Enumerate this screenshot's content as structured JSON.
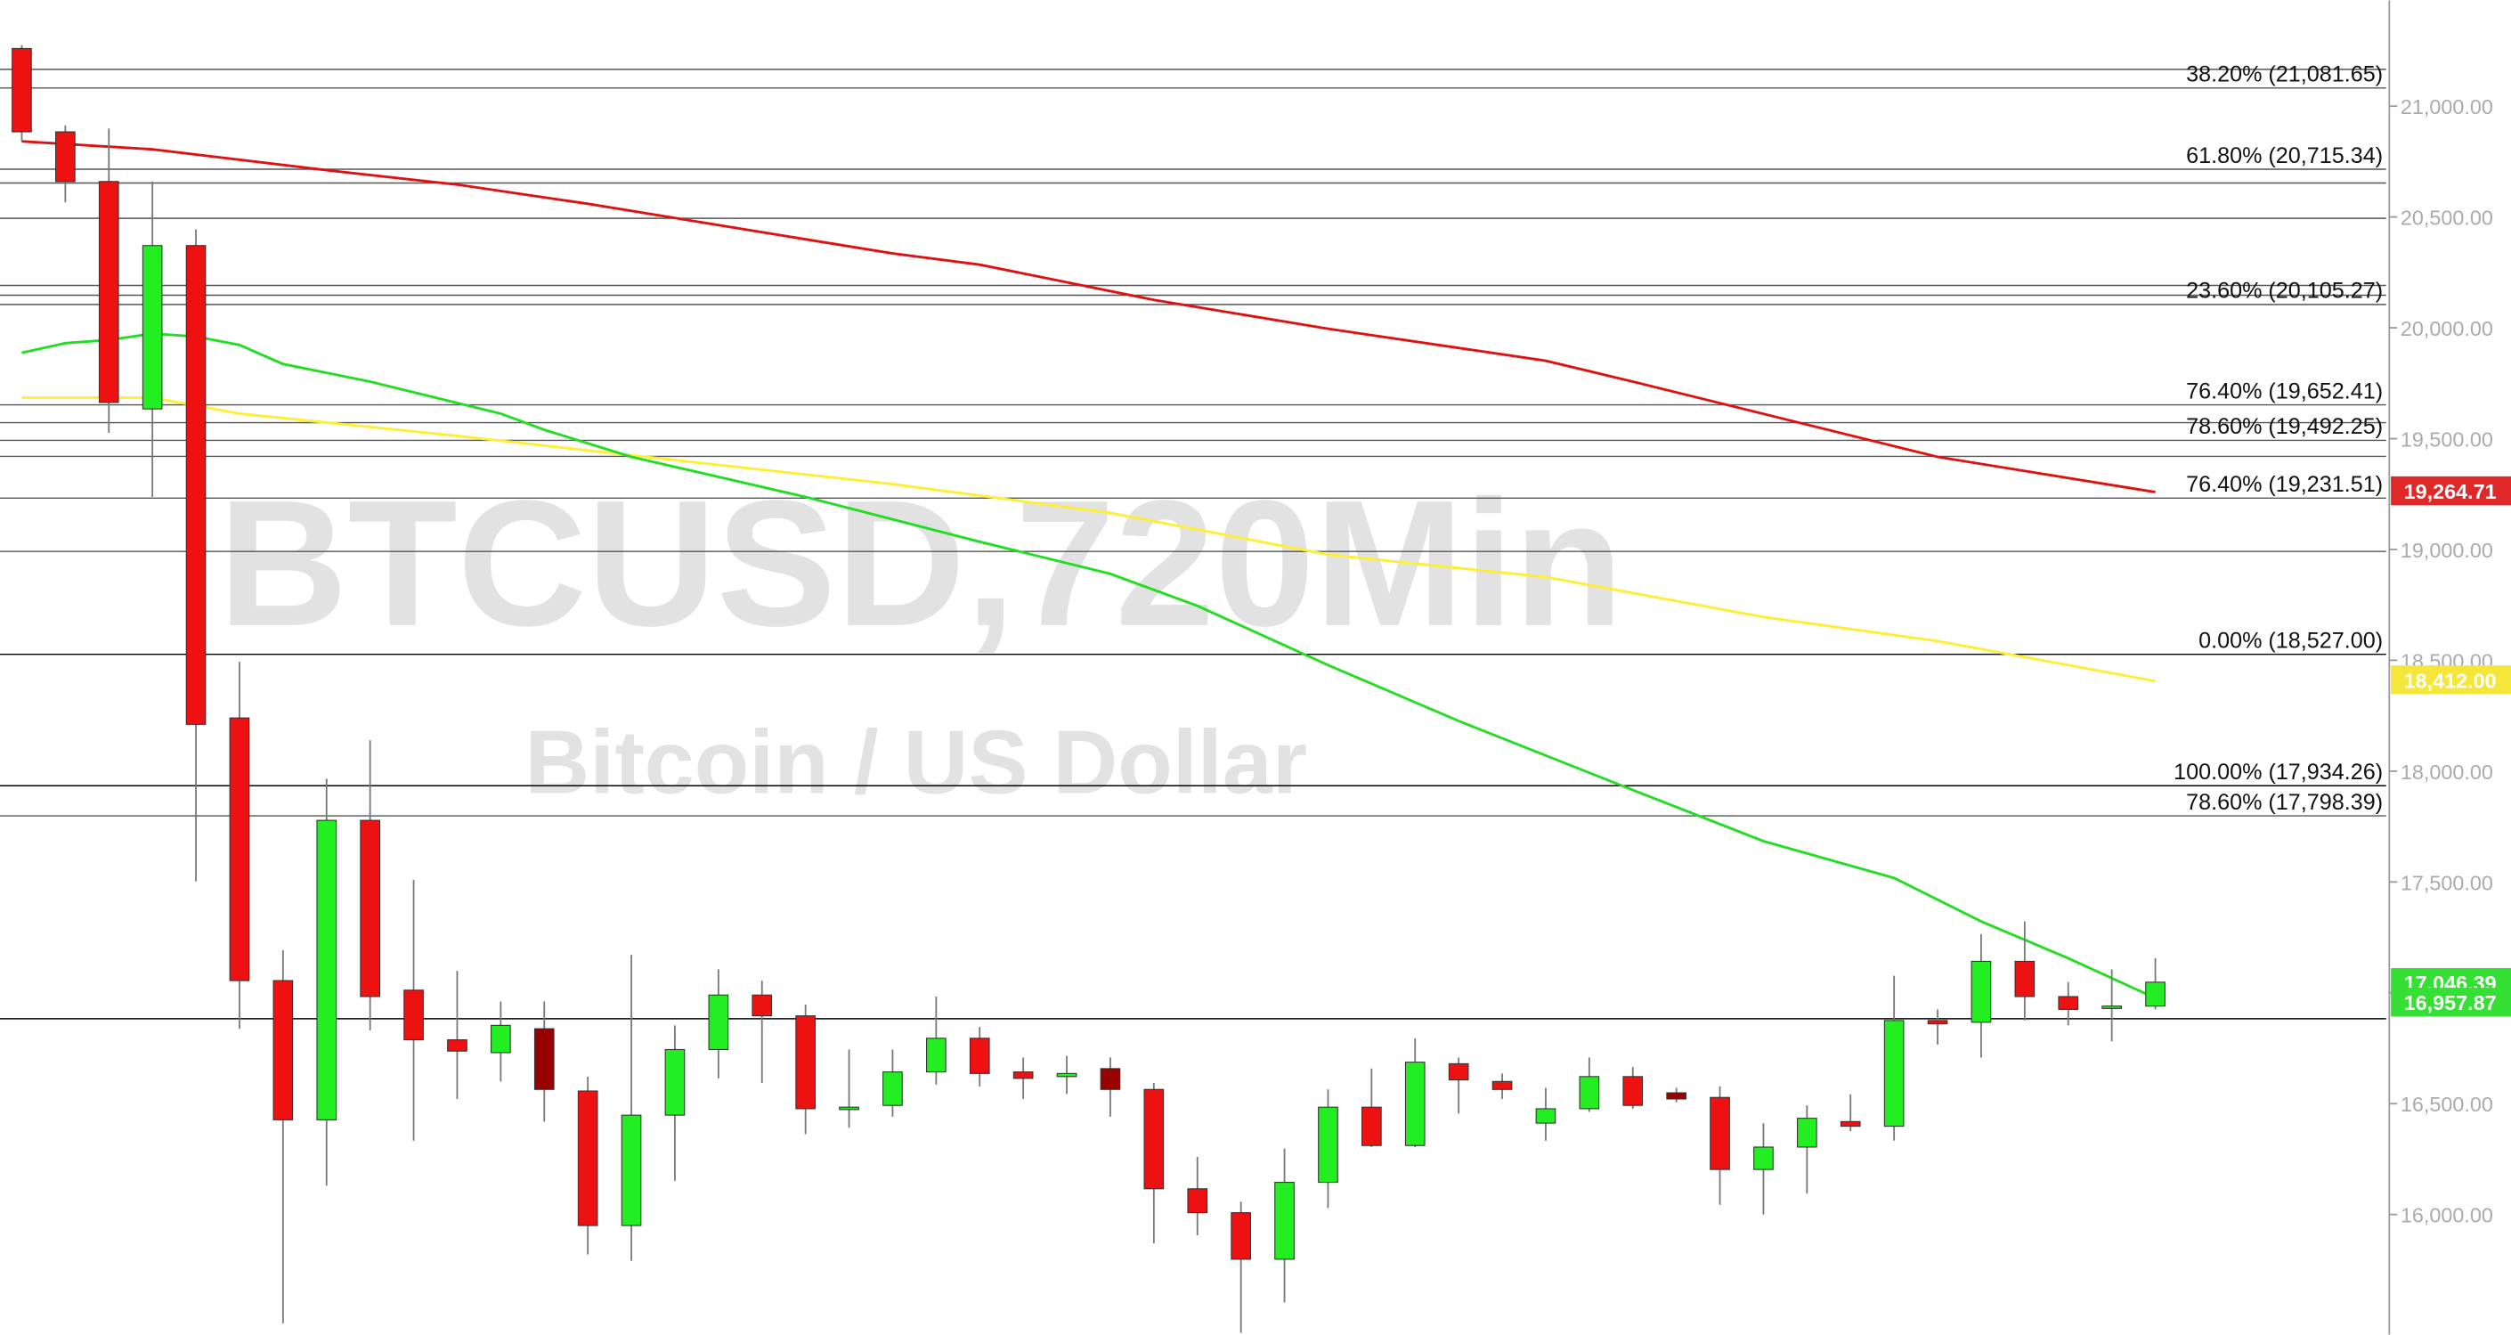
{
  "chart_data": {
    "type": "candlestick",
    "title": "BTCUSD,720Min",
    "subtitle": "Bitcoin / US Dollar",
    "xlim": [
      -0.5,
      54.3
    ],
    "ylim": [
      15458,
      21477
    ],
    "yticks": [
      {
        "value": 16000,
        "label": "16,000.00"
      },
      {
        "value": 16500,
        "label": "16,500.00"
      },
      {
        "value": 17000,
        "label": "17,000.00"
      },
      {
        "value": 17500,
        "label": "17,500.00"
      },
      {
        "value": 18000,
        "label": "18,000.00"
      },
      {
        "value": 18500,
        "label": "18,500.00"
      },
      {
        "value": 19000,
        "label": "19,000.00"
      },
      {
        "value": 19500,
        "label": "19,500.00"
      },
      {
        "value": 20000,
        "label": "20,000.00"
      },
      {
        "value": 20500,
        "label": "20,500.00"
      },
      {
        "value": 21000,
        "label": "21,000.00"
      }
    ],
    "up_color": "#22ee22",
    "down_color": "#ee1111",
    "alt_down_color": "#990000",
    "alt_down_indices": [
      12,
      25,
      38
    ],
    "x": [
      0,
      1,
      2,
      3,
      4,
      5,
      6,
      7,
      8,
      9,
      10,
      11,
      12,
      13,
      14,
      15,
      16,
      17,
      18,
      19,
      20,
      21,
      22,
      23,
      24,
      25,
      26,
      27,
      28,
      29,
      30,
      31,
      32,
      33,
      34,
      35,
      36,
      37,
      38,
      39,
      40,
      41,
      42,
      43,
      44,
      45,
      46,
      47,
      48,
      49
    ],
    "open": [
      21260,
      20884,
      20660,
      19634,
      20371,
      18240,
      17055,
      16427,
      17778,
      17012,
      16788,
      16730,
      16838,
      16557,
      15950,
      16448,
      16744,
      16990,
      16896,
      16477,
      16492,
      16643,
      16795,
      16643,
      16622,
      16658,
      16564,
      16116,
      16008,
      15798,
      16145,
      16484,
      16311,
      16680,
      16600,
      16412,
      16477,
      16622,
      16549,
      16528,
      16203,
      16304,
      16419,
      16398,
      16875,
      16867,
      17142,
      16983,
      16932,
      16940
    ],
    "high": [
      21275,
      20913,
      20899,
      20660,
      20444,
      18493,
      17192,
      17966,
      18139,
      17510,
      17099,
      16961,
      16961,
      16622,
      17171,
      16853,
      17106,
      17055,
      16947,
      16744,
      16744,
      16983,
      16846,
      16708,
      16716,
      16708,
      16593,
      16260,
      16058,
      16297,
      16564,
      16658,
      16795,
      16708,
      16636,
      16571,
      16708,
      16665,
      16571,
      16578,
      16412,
      16492,
      16542,
      17077,
      16925,
      17265,
      17322,
      17048,
      17106,
      17156
    ],
    "low": [
      20841,
      20566,
      19526,
      19237,
      17503,
      16838,
      15509,
      16130,
      16831,
      16333,
      16521,
      16600,
      16419,
      15820,
      15791,
      16152,
      16614,
      16593,
      16362,
      16391,
      16441,
      16586,
      16578,
      16521,
      16543,
      16441,
      15870,
      15906,
      15466,
      15603,
      16029,
      16304,
      16304,
      16455,
      16521,
      16333,
      16463,
      16477,
      16506,
      16044,
      16000,
      16094,
      16376,
      16333,
      16766,
      16708,
      16875,
      16853,
      16781,
      16925
    ],
    "close": [
      20884,
      20660,
      19663,
      20371,
      18211,
      17055,
      16427,
      17778,
      16983,
      16788,
      16737,
      16853,
      16564,
      15950,
      16448,
      16744,
      16990,
      16896,
      16477,
      16484,
      16643,
      16795,
      16636,
      16614,
      16636,
      16564,
      16116,
      16008,
      15798,
      16145,
      16484,
      16311,
      16687,
      16607,
      16564,
      16477,
      16622,
      16492,
      16521,
      16203,
      16304,
      16434,
      16398,
      16875,
      16860,
      17142,
      16983,
      16925,
      16940,
      17048
    ],
    "series": [
      {
        "color": "#dd1111",
        "x": [
          0,
          3,
          7,
          10,
          13,
          20,
          22,
          26,
          30,
          35,
          37,
          44,
          49
        ],
        "values": [
          20841,
          20805,
          20711,
          20646,
          20559,
          20335,
          20285,
          20126,
          19996,
          19851,
          19757,
          19418,
          19259
        ]
      },
      {
        "color": "#ffee33",
        "x": [
          0,
          3,
          5,
          10,
          15,
          20,
          25,
          30,
          35,
          40,
          44,
          49
        ],
        "values": [
          19685,
          19685,
          19613,
          19512,
          19403,
          19295,
          19165,
          18977,
          18876,
          18695,
          18587,
          18406
        ]
      },
      {
        "color": "#22dd22",
        "x": [
          0,
          1,
          2,
          3,
          4,
          5,
          6,
          8,
          11,
          12,
          14,
          18,
          22,
          25,
          27,
          30,
          33,
          37,
          40,
          43,
          45,
          47,
          49
        ],
        "values": [
          19887,
          19931,
          19945,
          19974,
          19960,
          19923,
          19837,
          19757,
          19613,
          19540,
          19418,
          19237,
          19035,
          18890,
          18746,
          18478,
          18226,
          17915,
          17684,
          17518,
          17322,
          17156,
          16976
        ]
      }
    ],
    "levels": [
      {
        "value": 21081.65,
        "label": "38.20% (21,081.65)",
        "color": "#555555"
      },
      {
        "value": 20715.34,
        "label": "61.80% (20,715.34)",
        "color": "#555555"
      },
      {
        "value": 20105.27,
        "label": "23.60% (20,105.27)",
        "color": "#555555"
      },
      {
        "value": 19652.41,
        "label": "76.40% (19,652.41)",
        "color": "#555555"
      },
      {
        "value": 19492.25,
        "label": "78.60% (19,492.25)",
        "color": "#555555"
      },
      {
        "value": 19231.51,
        "label": "76.40% (19,231.51)",
        "color": "#555555"
      },
      {
        "value": 18527.0,
        "label": "0.00% (18,527.00)",
        "color": "#000000"
      },
      {
        "value": 17934.26,
        "label": "100.00% (17,934.26)",
        "color": "#000000"
      },
      {
        "value": 17798.39,
        "label": "78.60% (17,798.39)",
        "color": "#555555"
      }
    ],
    "extra_levels": [
      {
        "value": 21166,
        "color": "#555555"
      },
      {
        "value": 20653,
        "color": "#555555"
      },
      {
        "value": 20494,
        "color": "#555555"
      },
      {
        "value": 20191,
        "color": "#555555"
      },
      {
        "value": 20147,
        "color": "#555555"
      },
      {
        "value": 19572,
        "color": "#555555"
      },
      {
        "value": 19420,
        "color": "#555555"
      },
      {
        "value": 18991,
        "color": "#555555"
      },
      {
        "value": 16883,
        "color": "#000000"
      }
    ],
    "badges": [
      {
        "value": 19264.71,
        "label": "19,264.71",
        "color": "#e02828"
      },
      {
        "value": 18412.0,
        "label": "18,412.00",
        "color": "#f5e63a"
      },
      {
        "value": 17046.39,
        "label": "17,046.39",
        "color": "#33e033"
      },
      {
        "value": 16957.87,
        "label": "16,957.87",
        "color": "#33e033"
      }
    ]
  }
}
